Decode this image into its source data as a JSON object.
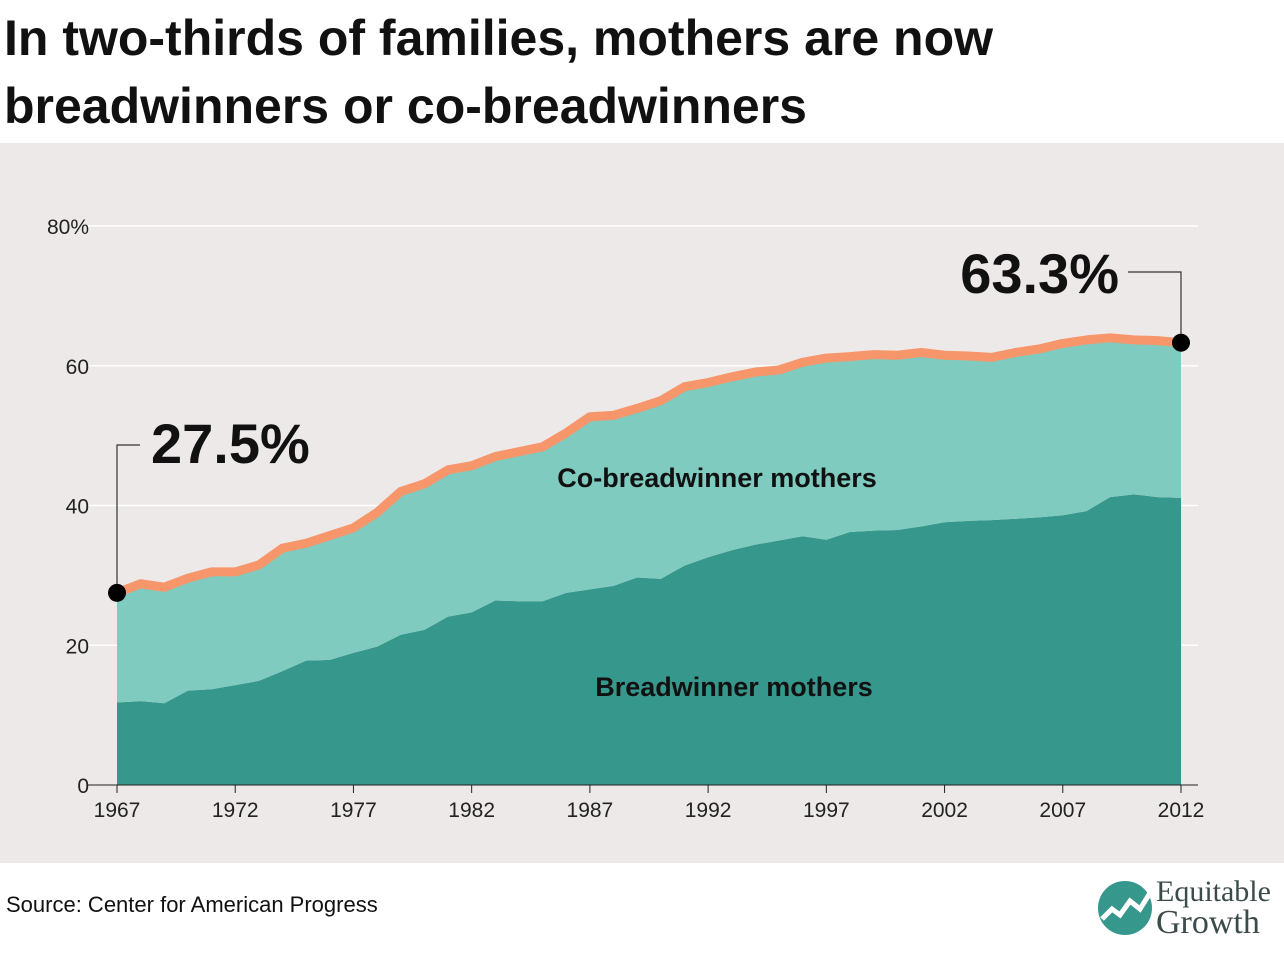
{
  "title_lines": [
    "In two-thirds of families, mothers are now",
    "breadwinners or co-breadwinners"
  ],
  "source": "Source: Center for American Progress",
  "logo": {
    "line1": "Equitable",
    "line2": "Growth",
    "icon": "equitable-growth-logo-icon"
  },
  "colors": {
    "panel_bg": "#ede9e8",
    "breadwinner": "#36978d",
    "co_breadwinner": "#80cbbf",
    "total_line": "#f7956b",
    "text": "#111111"
  },
  "chart_data": {
    "type": "area",
    "stacked": true,
    "x": [
      1967,
      1968,
      1969,
      1970,
      1971,
      1972,
      1973,
      1974,
      1975,
      1976,
      1977,
      1978,
      1979,
      1980,
      1981,
      1982,
      1983,
      1984,
      1985,
      1986,
      1987,
      1988,
      1989,
      1990,
      1991,
      1992,
      1993,
      1994,
      1995,
      1996,
      1997,
      1998,
      1999,
      2000,
      2001,
      2002,
      2003,
      2004,
      2005,
      2006,
      2007,
      2008,
      2009,
      2010,
      2011,
      2012
    ],
    "series": [
      {
        "name": "Breadwinner mothers",
        "values": [
          11.8,
          12.0,
          11.7,
          13.5,
          13.7,
          14.3,
          14.9,
          16.3,
          17.8,
          17.9,
          18.9,
          19.8,
          21.5,
          22.2,
          24.1,
          24.7,
          26.4,
          26.3,
          26.3,
          27.5,
          28.0,
          28.5,
          29.7,
          29.5,
          31.4,
          32.6,
          33.6,
          34.4,
          35.0,
          35.6,
          35.1,
          36.2,
          36.4,
          36.5,
          37.0,
          37.6,
          37.8,
          37.9,
          38.1,
          38.3,
          38.6,
          39.2,
          41.2,
          41.6,
          41.2,
          41.1
        ]
      },
      {
        "name": "Co-breadwinner mothers",
        "values": [
          15.7,
          16.8,
          16.6,
          16.1,
          16.8,
          16.2,
          16.6,
          17.6,
          16.8,
          17.8,
          17.9,
          19.2,
          20.5,
          20.9,
          21.0,
          21.0,
          20.6,
          21.4,
          22.1,
          22.9,
          24.7,
          24.4,
          24.2,
          25.5,
          25.6,
          25.0,
          24.8,
          24.7,
          24.4,
          24.9,
          26.0,
          25.1,
          25.2,
          25.0,
          24.9,
          23.9,
          23.6,
          23.3,
          23.8,
          24.1,
          24.6,
          24.5,
          22.8,
          22.1,
          22.4,
          22.2
        ]
      }
    ],
    "total_label": "total",
    "yticks": [
      "0",
      "20",
      "40",
      "60",
      "80%"
    ],
    "ytick_values": [
      0,
      20,
      40,
      60,
      80
    ],
    "xticks": [
      1967,
      1972,
      1977,
      1982,
      1987,
      1992,
      1997,
      2002,
      2007,
      2012
    ],
    "ylim": [
      0,
      80
    ],
    "xlim": [
      1967,
      2012
    ],
    "grid": true,
    "annotations": [
      {
        "x": 1967,
        "y": 27.5,
        "text": "27.5%"
      },
      {
        "x": 2012,
        "y": 63.3,
        "text": "63.3%"
      }
    ],
    "area_labels": [
      "Co-breadwinner mothers",
      "Breadwinner mothers"
    ]
  }
}
